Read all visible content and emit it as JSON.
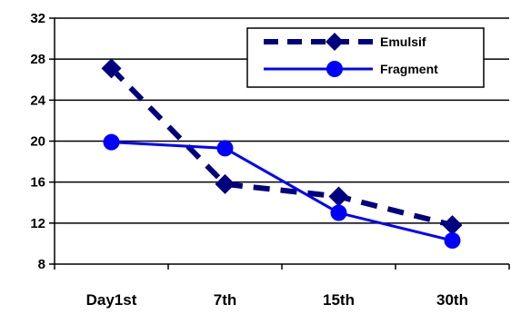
{
  "chart_data": {
    "type": "line",
    "categories": [
      "Day1st",
      "7th",
      "15th",
      "30th"
    ],
    "series": [
      {
        "name": "Emulsif",
        "values": [
          27.1,
          15.8,
          14.6,
          11.8
        ],
        "color": "#000080",
        "line_style": "dashed",
        "marker": "diamond"
      },
      {
        "name": "Fragment",
        "values": [
          19.9,
          19.3,
          13.0,
          10.3
        ],
        "color": "#0000FF",
        "line_style": "solid",
        "marker": "circle"
      }
    ],
    "yticks": [
      "8",
      "12",
      "16",
      "20",
      "24",
      "28",
      "32"
    ],
    "ylim": [
      8,
      32
    ],
    "grid": "horizontal",
    "legend_position": "top-right"
  }
}
